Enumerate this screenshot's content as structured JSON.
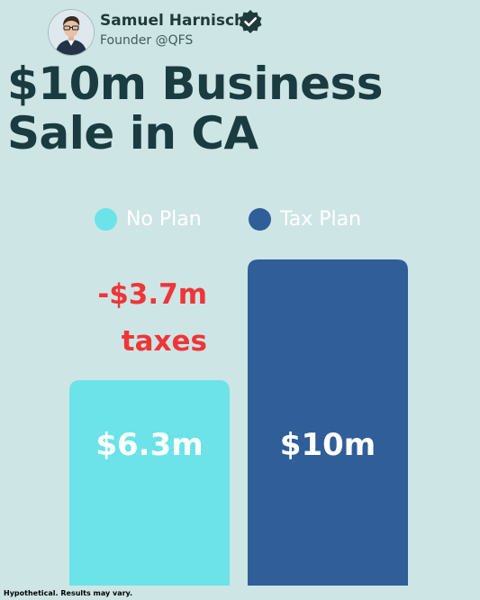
{
  "author": {
    "name": "Samuel Harnisch",
    "subtitle": "Founder @QFS",
    "avatar_icon": "person-avatar-icon",
    "verified_icon": "verified-check-icon"
  },
  "title_lines": [
    "$10m Business",
    "Sale in CA"
  ],
  "colors": {
    "background": "#cde5e5",
    "no_plan": "#6be3e8",
    "tax_plan": "#2f5e98",
    "tax_note": "#ef3537",
    "title": "#1a3b40"
  },
  "chart_data": {
    "type": "bar",
    "categories": [
      "No Plan",
      "Tax Plan"
    ],
    "values": [
      6.3,
      10
    ],
    "data_labels": [
      "$6.3m",
      "$10m"
    ],
    "legend": [
      {
        "label": "No Plan",
        "color": "#6be3e8"
      },
      {
        "label": "Tax Plan",
        "color": "#2f5e98"
      }
    ],
    "legend_placement": "top",
    "annotations": [
      {
        "category": "No Plan",
        "lines": [
          "-$3.7m",
          "taxes"
        ],
        "value": -3.7
      }
    ],
    "ylim": [
      0,
      10
    ],
    "grid": false,
    "title": "",
    "xlabel": "",
    "ylabel": ""
  },
  "disclaimer": "Hypothetical. Results may vary."
}
